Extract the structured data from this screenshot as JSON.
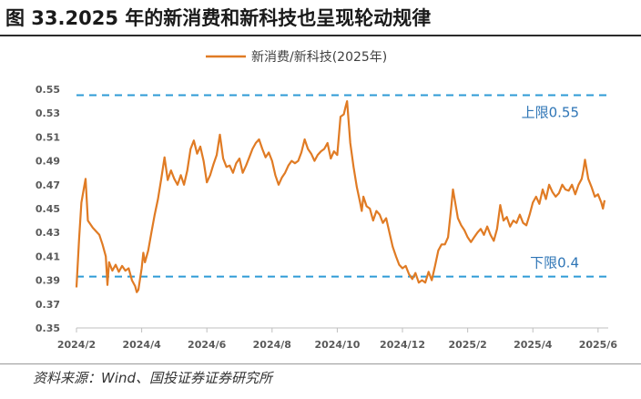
{
  "title": "图 33.2025 年的新消费和新科技也呈现轮动规律",
  "source": "资料来源：Wind、国投证券证券研究所",
  "colors": {
    "series": "#e07b24",
    "threshold": "#2e9bd6",
    "annotation": "#2e75b6",
    "axis": "#bfbfbf"
  },
  "chart_data": {
    "type": "line",
    "title": "",
    "xlabel": "",
    "ylabel": "",
    "ylim": [
      0.35,
      0.55
    ],
    "grid": false,
    "legend_position": "top-center",
    "y_ticks": [
      "0.35",
      "0.37",
      "0.39",
      "0.41",
      "0.43",
      "0.45",
      "0.47",
      "0.49",
      "0.51",
      "0.53",
      "0.55"
    ],
    "x_ticks": [
      "2024/2",
      "2024/4",
      "2024/6",
      "2024/8",
      "2024/10",
      "2024/12",
      "2025/2",
      "2025/4",
      "2025/6"
    ],
    "x_range": [
      0,
      16.2
    ],
    "series": [
      {
        "name": "新消费/新科技(2025年)",
        "points": [
          [
            0.0,
            0.384
          ],
          [
            0.08,
            0.425
          ],
          [
            0.15,
            0.455
          ],
          [
            0.22,
            0.466
          ],
          [
            0.28,
            0.475
          ],
          [
            0.35,
            0.44
          ],
          [
            0.5,
            0.434
          ],
          [
            0.7,
            0.428
          ],
          [
            0.8,
            0.42
          ],
          [
            0.9,
            0.41
          ],
          [
            0.95,
            0.386
          ],
          [
            1.0,
            0.405
          ],
          [
            1.1,
            0.398
          ],
          [
            1.2,
            0.403
          ],
          [
            1.3,
            0.397
          ],
          [
            1.4,
            0.402
          ],
          [
            1.5,
            0.398
          ],
          [
            1.6,
            0.4
          ],
          [
            1.7,
            0.39
          ],
          [
            1.8,
            0.385
          ],
          [
            1.85,
            0.38
          ],
          [
            1.9,
            0.382
          ],
          [
            2.0,
            0.4
          ],
          [
            2.05,
            0.413
          ],
          [
            2.1,
            0.405
          ],
          [
            2.15,
            0.41
          ],
          [
            2.2,
            0.415
          ],
          [
            2.3,
            0.43
          ],
          [
            2.4,
            0.445
          ],
          [
            2.5,
            0.458
          ],
          [
            2.6,
            0.475
          ],
          [
            2.7,
            0.493
          ],
          [
            2.8,
            0.474
          ],
          [
            2.9,
            0.482
          ],
          [
            3.0,
            0.475
          ],
          [
            3.1,
            0.47
          ],
          [
            3.2,
            0.478
          ],
          [
            3.3,
            0.47
          ],
          [
            3.4,
            0.482
          ],
          [
            3.5,
            0.5
          ],
          [
            3.6,
            0.507
          ],
          [
            3.7,
            0.496
          ],
          [
            3.8,
            0.502
          ],
          [
            3.9,
            0.49
          ],
          [
            4.0,
            0.472
          ],
          [
            4.1,
            0.478
          ],
          [
            4.2,
            0.487
          ],
          [
            4.3,
            0.495
          ],
          [
            4.4,
            0.512
          ],
          [
            4.5,
            0.492
          ],
          [
            4.6,
            0.485
          ],
          [
            4.7,
            0.486
          ],
          [
            4.8,
            0.48
          ],
          [
            4.9,
            0.488
          ],
          [
            5.0,
            0.492
          ],
          [
            5.1,
            0.48
          ],
          [
            5.2,
            0.486
          ],
          [
            5.3,
            0.493
          ],
          [
            5.4,
            0.5
          ],
          [
            5.5,
            0.505
          ],
          [
            5.6,
            0.508
          ],
          [
            5.7,
            0.5
          ],
          [
            5.8,
            0.493
          ],
          [
            5.9,
            0.497
          ],
          [
            6.0,
            0.49
          ],
          [
            6.1,
            0.478
          ],
          [
            6.2,
            0.47
          ],
          [
            6.3,
            0.476
          ],
          [
            6.4,
            0.48
          ],
          [
            6.5,
            0.486
          ],
          [
            6.6,
            0.49
          ],
          [
            6.7,
            0.488
          ],
          [
            6.8,
            0.49
          ],
          [
            6.9,
            0.497
          ],
          [
            7.0,
            0.508
          ],
          [
            7.1,
            0.5
          ],
          [
            7.2,
            0.496
          ],
          [
            7.3,
            0.49
          ],
          [
            7.4,
            0.495
          ],
          [
            7.5,
            0.498
          ],
          [
            7.6,
            0.5
          ],
          [
            7.7,
            0.505
          ],
          [
            7.8,
            0.492
          ],
          [
            7.9,
            0.498
          ],
          [
            8.0,
            0.495
          ],
          [
            8.1,
            0.527
          ],
          [
            8.2,
            0.529
          ],
          [
            8.25,
            0.535
          ],
          [
            8.3,
            0.54
          ],
          [
            8.4,
            0.505
          ],
          [
            8.5,
            0.485
          ],
          [
            8.6,
            0.468
          ],
          [
            8.7,
            0.455
          ],
          [
            8.75,
            0.448
          ],
          [
            8.8,
            0.46
          ],
          [
            8.9,
            0.452
          ],
          [
            9.0,
            0.45
          ],
          [
            9.1,
            0.44
          ],
          [
            9.2,
            0.448
          ],
          [
            9.3,
            0.445
          ],
          [
            9.4,
            0.438
          ],
          [
            9.5,
            0.442
          ],
          [
            9.6,
            0.43
          ],
          [
            9.7,
            0.418
          ],
          [
            9.8,
            0.41
          ],
          [
            9.9,
            0.403
          ],
          [
            10.0,
            0.4
          ],
          [
            10.1,
            0.402
          ],
          [
            10.2,
            0.395
          ],
          [
            10.3,
            0.391
          ],
          [
            10.4,
            0.396
          ],
          [
            10.5,
            0.388
          ],
          [
            10.6,
            0.39
          ],
          [
            10.7,
            0.388
          ],
          [
            10.8,
            0.397
          ],
          [
            10.9,
            0.39
          ],
          [
            11.0,
            0.402
          ],
          [
            11.1,
            0.415
          ],
          [
            11.2,
            0.42
          ],
          [
            11.3,
            0.42
          ],
          [
            11.4,
            0.426
          ],
          [
            11.5,
            0.452
          ],
          [
            11.55,
            0.466
          ],
          [
            11.6,
            0.458
          ],
          [
            11.7,
            0.442
          ],
          [
            11.8,
            0.436
          ],
          [
            11.9,
            0.432
          ],
          [
            12.0,
            0.426
          ],
          [
            12.1,
            0.422
          ],
          [
            12.2,
            0.426
          ],
          [
            12.3,
            0.43
          ],
          [
            12.4,
            0.433
          ],
          [
            12.5,
            0.428
          ],
          [
            12.6,
            0.435
          ],
          [
            12.7,
            0.428
          ],
          [
            12.8,
            0.423
          ],
          [
            12.9,
            0.433
          ],
          [
            13.0,
            0.453
          ],
          [
            13.1,
            0.44
          ],
          [
            13.2,
            0.443
          ],
          [
            13.3,
            0.435
          ],
          [
            13.4,
            0.44
          ],
          [
            13.5,
            0.438
          ],
          [
            13.6,
            0.445
          ],
          [
            13.7,
            0.438
          ],
          [
            13.8,
            0.436
          ],
          [
            13.9,
            0.445
          ],
          [
            14.0,
            0.455
          ],
          [
            14.1,
            0.46
          ],
          [
            14.2,
            0.454
          ],
          [
            14.3,
            0.466
          ],
          [
            14.4,
            0.458
          ],
          [
            14.5,
            0.47
          ],
          [
            14.6,
            0.464
          ],
          [
            14.7,
            0.46
          ],
          [
            14.8,
            0.463
          ],
          [
            14.9,
            0.47
          ],
          [
            15.0,
            0.466
          ],
          [
            15.1,
            0.465
          ],
          [
            15.2,
            0.47
          ],
          [
            15.3,
            0.462
          ],
          [
            15.4,
            0.47
          ],
          [
            15.5,
            0.475
          ],
          [
            15.55,
            0.482
          ],
          [
            15.6,
            0.491
          ],
          [
            15.7,
            0.475
          ],
          [
            15.8,
            0.468
          ],
          [
            15.9,
            0.46
          ],
          [
            16.0,
            0.462
          ],
          [
            16.1,
            0.455
          ],
          [
            16.15,
            0.45
          ],
          [
            16.2,
            0.457
          ]
        ]
      }
    ],
    "annotations": [
      {
        "label": "上限0.55",
        "value": 0.545,
        "style": "dashed-line"
      },
      {
        "label": "下限0.4",
        "value": 0.393,
        "style": "dashed-line"
      }
    ]
  }
}
